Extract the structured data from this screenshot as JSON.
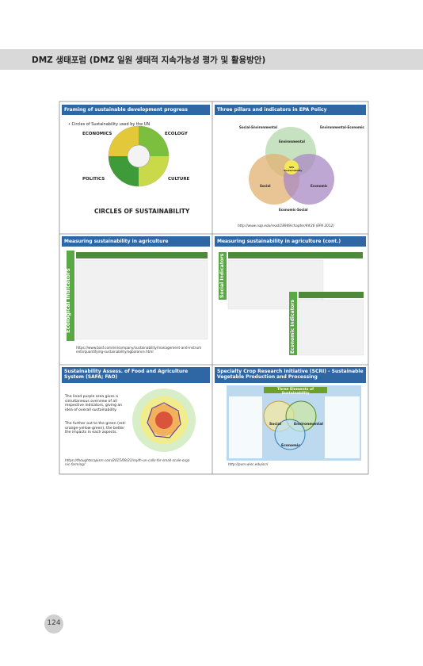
{
  "header": {
    "title": "DMZ 생태포럼 (DMZ 일원 생태적 지속가능성 평가 및 활용방안)"
  },
  "slides": [
    {
      "title": "Framing of sustainable development progress",
      "bullet": "Circles of Sustainability used by the UN",
      "labels": [
        "ECONOMICS",
        "ECOLOGY",
        "POLITICS",
        "CULTURE"
      ],
      "caption": "CIRCLES OF SUSTAINABILITY"
    },
    {
      "title": "Three pillars and indicators in EPA Policy",
      "labels": [
        "Social-Environmental",
        "Environmental-Economic",
        "Social",
        "Environmental",
        "Economic",
        "Economic-Social",
        "SES Sustainability"
      ],
      "source": "http://www.nap.edu/read/18949/chapter/4#26  (EPA 2012)"
    },
    {
      "title": "Measuring sustainability in agriculture",
      "side_label": "Ecological Indicators",
      "source": "https://www.basf.com/en/company/sustainability/management-and-instruments/quantifying-sustainability/agbalance.html"
    },
    {
      "title": "Measuring sustainability in agriculture (cont.)",
      "side_labels": [
        "Social Indicators",
        "Economic Indicators"
      ]
    },
    {
      "title": "Sustainability Assess. of Food and Agriculture System (SAFA; FAO)",
      "paragraphs": [
        "The lined purple area gives a simultaneous overview of all respective indicators, giving an idea of overall sustainability.",
        "The further out to the green (red-orange-yellow-green), the better the impacts in each aspects."
      ],
      "source": "https://thoughtscapism.com/2015/09/21/myth-un-calls-for-small-scale-organic-farming/"
    },
    {
      "title": "Specialty Crop Research Initiative (SCRI) - Sustainable Vegetable Production and Processing",
      "heading": "Three Elements of Sustainability",
      "labels": [
        "Social",
        "Environmental",
        "Economic"
      ],
      "source": "http://pvm.wisc.edu/scri"
    }
  ],
  "footer": {
    "page_number": "124"
  }
}
